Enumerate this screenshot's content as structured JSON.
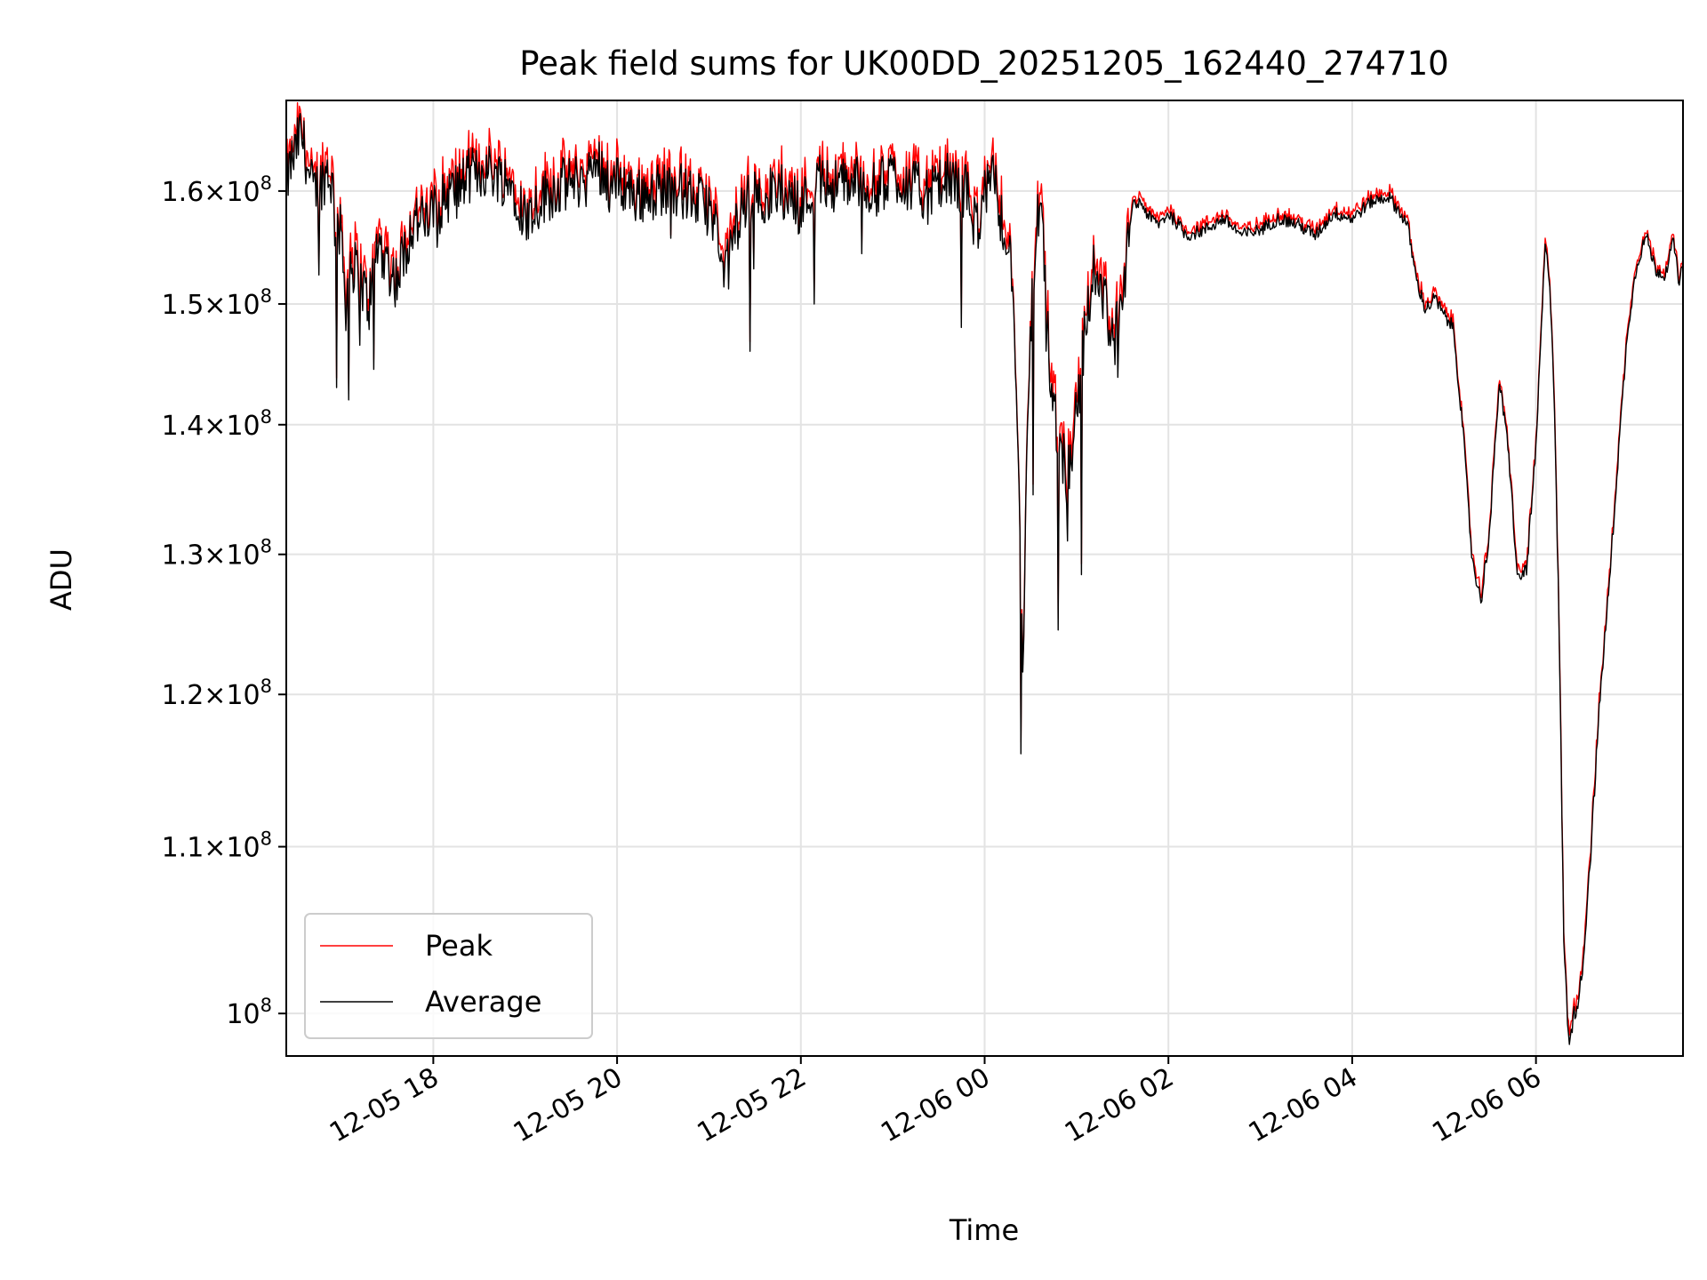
{
  "chart_data": {
    "type": "line",
    "title": "Peak field sums for UK00DD_20251205_162440_274710",
    "xlabel": "Time",
    "ylabel": "ADU",
    "yscale": "log",
    "grid": true,
    "legend_position": "lower-left",
    "x_unit": "hours since 12-05 16:24",
    "xlim": [
      0,
      15.2
    ],
    "ylim": [
      97600000,
      168500000
    ],
    "x_ticks": [
      {
        "x": 1.6,
        "label": "12-05 18"
      },
      {
        "x": 3.6,
        "label": "12-05 20"
      },
      {
        "x": 5.6,
        "label": "12-05 22"
      },
      {
        "x": 7.6,
        "label": "12-06 00"
      },
      {
        "x": 9.6,
        "label": "12-06 02"
      },
      {
        "x": 11.6,
        "label": "12-06 04"
      },
      {
        "x": 13.6,
        "label": "12-06 06"
      }
    ],
    "y_ticks": [
      {
        "value": 100000000,
        "mantissa": "",
        "exp": "8"
      },
      {
        "value": 110000000,
        "mantissa": "1.1",
        "exp": "8"
      },
      {
        "value": 120000000,
        "mantissa": "1.2",
        "exp": "8"
      },
      {
        "value": 130000000,
        "mantissa": "1.3",
        "exp": "8"
      },
      {
        "value": 140000000,
        "mantissa": "1.4",
        "exp": "8"
      },
      {
        "value": 150000000,
        "mantissa": "1.5",
        "exp": "8"
      },
      {
        "value": 160000000,
        "mantissa": "1.6",
        "exp": "8"
      }
    ],
    "tick_times_symbol": "×",
    "tick_base": "10",
    "series": [
      {
        "name": "Peak",
        "color": "#ff0000"
      },
      {
        "name": "Average",
        "color": "#000000"
      }
    ],
    "average_anchors": [
      [
        0.0,
        160.5
      ],
      [
        0.05,
        162.5
      ],
      [
        0.1,
        163.5
      ],
      [
        0.15,
        165.5
      ],
      [
        0.2,
        164.0
      ],
      [
        0.25,
        161.0
      ],
      [
        0.3,
        160.0
      ],
      [
        0.4,
        161.0
      ],
      [
        0.45,
        162.0
      ],
      [
        0.5,
        160.5
      ],
      [
        0.55,
        157.0
      ],
      [
        0.6,
        156.0
      ],
      [
        0.65,
        150.0
      ],
      [
        0.7,
        154.0
      ],
      [
        0.8,
        152.0
      ],
      [
        0.9,
        150.0
      ],
      [
        1.0,
        155.5
      ],
      [
        1.1,
        153.5
      ],
      [
        1.2,
        152.0
      ],
      [
        1.3,
        155.0
      ],
      [
        1.4,
        157.5
      ],
      [
        1.5,
        157.0
      ],
      [
        1.6,
        158.0
      ],
      [
        1.7,
        159.0
      ],
      [
        1.8,
        160.0
      ],
      [
        1.9,
        160.5
      ],
      [
        2.0,
        161.5
      ],
      [
        2.2,
        162.0
      ],
      [
        2.4,
        161.0
      ],
      [
        2.5,
        160.0
      ],
      [
        2.6,
        157.5
      ],
      [
        2.7,
        158.5
      ],
      [
        2.8,
        159.5
      ],
      [
        3.0,
        160.5
      ],
      [
        3.2,
        161.0
      ],
      [
        3.4,
        162.5
      ],
      [
        3.5,
        161.0
      ],
      [
        3.7,
        160.5
      ],
      [
        3.8,
        159.5
      ],
      [
        4.0,
        160.0
      ],
      [
        4.2,
        160.5
      ],
      [
        4.4,
        159.5
      ],
      [
        4.6,
        158.5
      ],
      [
        4.7,
        156.0
      ],
      [
        4.8,
        153.0
      ],
      [
        4.9,
        157.0
      ],
      [
        5.0,
        159.0
      ],
      [
        5.2,
        159.5
      ],
      [
        5.4,
        160.0
      ],
      [
        5.6,
        158.5
      ],
      [
        5.8,
        161.0
      ],
      [
        6.0,
        160.5
      ],
      [
        6.2,
        161.0
      ],
      [
        6.4,
        160.0
      ],
      [
        6.6,
        161.5
      ],
      [
        6.8,
        160.5
      ],
      [
        7.0,
        159.5
      ],
      [
        7.2,
        161.0
      ],
      [
        7.4,
        160.0
      ],
      [
        7.5,
        157.0
      ],
      [
        7.6,
        159.5
      ],
      [
        7.7,
        161.0
      ],
      [
        7.8,
        157.0
      ],
      [
        7.9,
        153.0
      ],
      [
        8.0,
        128.0
      ],
      [
        8.02,
        120.0
      ],
      [
        8.05,
        135.0
      ],
      [
        8.1,
        148.0
      ],
      [
        8.2,
        160.0
      ],
      [
        8.3,
        145.5
      ],
      [
        8.4,
        139.0
      ],
      [
        8.5,
        136.0
      ],
      [
        8.6,
        141.0
      ],
      [
        8.7,
        148.0
      ],
      [
        8.8,
        153.5
      ],
      [
        8.9,
        150.5
      ],
      [
        9.0,
        147.0
      ],
      [
        9.1,
        149.0
      ],
      [
        9.2,
        158.5
      ],
      [
        9.3,
        159.0
      ],
      [
        9.4,
        157.5
      ],
      [
        9.5,
        157.0
      ],
      [
        9.6,
        158.0
      ],
      [
        9.7,
        157.0
      ],
      [
        9.8,
        156.0
      ],
      [
        10.0,
        156.5
      ],
      [
        10.2,
        157.5
      ],
      [
        10.4,
        156.0
      ],
      [
        10.6,
        156.5
      ],
      [
        10.8,
        157.5
      ],
      [
        11.0,
        157.0
      ],
      [
        11.2,
        156.0
      ],
      [
        11.4,
        158.0
      ],
      [
        11.6,
        157.5
      ],
      [
        11.8,
        159.0
      ],
      [
        12.0,
        159.5
      ],
      [
        12.2,
        157.0
      ],
      [
        12.3,
        152.0
      ],
      [
        12.4,
        149.5
      ],
      [
        12.5,
        150.5
      ],
      [
        12.6,
        149.0
      ],
      [
        12.7,
        148.0
      ],
      [
        12.8,
        140.0
      ],
      [
        12.9,
        130.0
      ],
      [
        13.0,
        126.5
      ],
      [
        13.1,
        132.0
      ],
      [
        13.2,
        143.5
      ],
      [
        13.3,
        138.0
      ],
      [
        13.4,
        128.0
      ],
      [
        13.5,
        129.0
      ],
      [
        13.6,
        138.0
      ],
      [
        13.7,
        155.0
      ],
      [
        13.75,
        152.0
      ],
      [
        13.8,
        142.0
      ],
      [
        13.85,
        125.0
      ],
      [
        13.9,
        105.0
      ],
      [
        13.95,
        98.5
      ],
      [
        14.0,
        99.5
      ],
      [
        14.1,
        102.0
      ],
      [
        14.2,
        110.0
      ],
      [
        14.3,
        120.0
      ],
      [
        14.4,
        128.0
      ],
      [
        14.5,
        138.0
      ],
      [
        14.6,
        148.0
      ],
      [
        14.7,
        153.5
      ],
      [
        14.8,
        156.0
      ],
      [
        14.9,
        153.0
      ],
      [
        15.0,
        152.5
      ],
      [
        15.05,
        154.0
      ],
      [
        15.1,
        155.5
      ],
      [
        15.15,
        152.0
      ],
      [
        15.2,
        153.0
      ]
    ],
    "average_spikes": [
      [
        0.35,
        152.5
      ],
      [
        0.55,
        143.0
      ],
      [
        0.68,
        142.0
      ],
      [
        0.8,
        146.5
      ],
      [
        0.95,
        144.5
      ],
      [
        5.05,
        146.0
      ],
      [
        5.75,
        150.0
      ],
      [
        7.35,
        148.0
      ],
      [
        8.0,
        116.0
      ],
      [
        8.13,
        134.5
      ],
      [
        8.4,
        124.5
      ],
      [
        8.5,
        131.0
      ],
      [
        8.65,
        128.5
      ]
    ]
  }
}
